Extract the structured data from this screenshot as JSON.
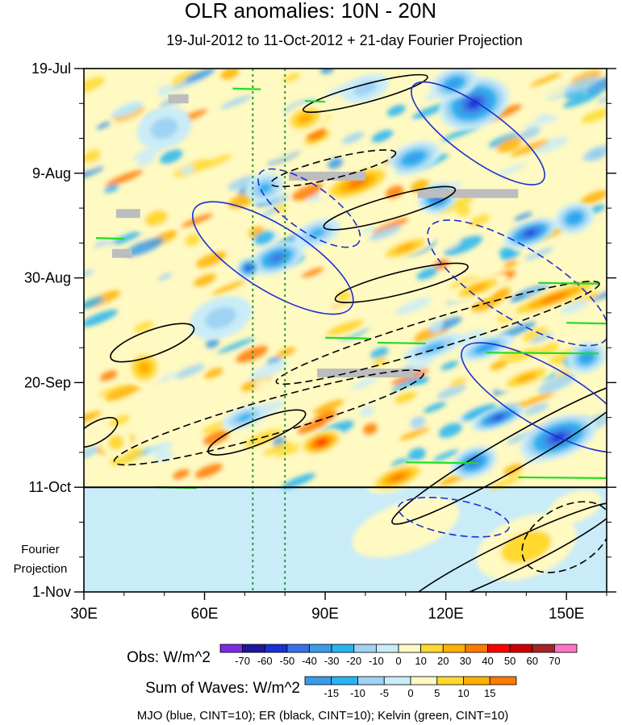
{
  "chart_data": {
    "type": "heatmap",
    "title": "OLR anomalies: 10N - 20N",
    "subtitle": "19-Jul-2012 to 11-Oct-2012 + 21-day Fourier Projection",
    "x_axis": {
      "range": [
        30,
        160
      ],
      "ticks": [
        30,
        60,
        90,
        120,
        150
      ],
      "tick_labels": [
        "30E",
        "60E",
        "90E",
        "120E",
        "150E"
      ],
      "minor_step": 10
    },
    "y_axis": {
      "range_days": [
        0,
        105
      ],
      "direction": "time increases downward",
      "ticks_days": [
        0,
        21,
        42,
        63,
        84,
        105
      ],
      "tick_labels": [
        "19-Jul",
        "9-Aug",
        "30-Aug",
        "20-Sep",
        "11-Oct",
        "1-Nov"
      ],
      "minor_step_days": 7
    },
    "observation_end": {
      "day": 84,
      "label": "11-Oct"
    },
    "projection_label": [
      "Fourier",
      "Projection"
    ],
    "reference_longitudes": [
      72,
      80
    ],
    "colorbars": [
      {
        "label": "Obs: W/m^2",
        "levels": [
          -70,
          -60,
          -50,
          -40,
          -30,
          -20,
          -10,
          0,
          10,
          20,
          30,
          40,
          50,
          60,
          70
        ],
        "colors": [
          "#7d2be0",
          "#1c18a0",
          "#1a2fd6",
          "#3a6fe6",
          "#3a9be8",
          "#27b4f0",
          "#9fd3f3",
          "#c9ecf8",
          "#fff9c2",
          "#ffd92e",
          "#ffb000",
          "#ff7a00",
          "#ff0000",
          "#cc0000",
          "#a52424",
          "#ff74c3"
        ]
      },
      {
        "label": "Sum of Waves: W/m^2",
        "levels": [
          -15,
          -10,
          -5,
          0,
          5,
          10,
          15
        ],
        "colors": [
          "#3a9be8",
          "#27b4f0",
          "#9fd3f3",
          "#c9ecf8",
          "#fff9c2",
          "#ffd92e",
          "#ffb000",
          "#ff7a00"
        ]
      }
    ],
    "contour_legend": "MJO (blue, CINT=10); ER (black, CINT=10); Kelvin (green, CINT=10)",
    "series_colors": {
      "MJO": "#1c2fd0",
      "ER": "#000000",
      "Kelvin": "#22dd22"
    },
    "anomaly_features": [
      {
        "lon": 127,
        "day": 7,
        "rlon": 9,
        "rday": 5,
        "value": -55
      },
      {
        "lon": 122,
        "day": 3,
        "rlon": 6,
        "rday": 3,
        "value": -40
      },
      {
        "lon": 112,
        "day": 18,
        "rlon": 7,
        "rday": 3,
        "value": -35
      },
      {
        "lon": 118,
        "day": 26,
        "rlon": 5,
        "rday": 3,
        "value": -45
      },
      {
        "lon": 141,
        "day": 33,
        "rlon": 7,
        "rday": 2.5,
        "value": -55
      },
      {
        "lon": 152,
        "day": 30,
        "rlon": 5,
        "rday": 3,
        "value": -35
      },
      {
        "lon": 98,
        "day": 23,
        "rlon": 10,
        "rday": 3,
        "value": 40
      },
      {
        "lon": 110,
        "day": 36,
        "rlon": 8,
        "rday": 2,
        "value": 30
      },
      {
        "lon": 147,
        "day": 46,
        "rlon": 14,
        "rday": 2,
        "value": 35
      },
      {
        "lon": 128,
        "day": 44,
        "rlon": 8,
        "rday": 2,
        "value": 25
      },
      {
        "lon": 78,
        "day": 38,
        "rlon": 7,
        "rday": 3,
        "value": -45
      },
      {
        "lon": 71,
        "day": 40,
        "rlon": 3,
        "rday": 2,
        "value": -55
      },
      {
        "lon": 88,
        "day": 33,
        "rlon": 6,
        "rday": 2.5,
        "value": -25
      },
      {
        "lon": 130,
        "day": 56,
        "rlon": 7,
        "rday": 2,
        "value": -35
      },
      {
        "lon": 117,
        "day": 56,
        "rlon": 8,
        "rday": 2,
        "value": -25
      },
      {
        "lon": 133,
        "day": 70,
        "rlon": 7,
        "rday": 2,
        "value": -55
      },
      {
        "lon": 148,
        "day": 74,
        "rlon": 10,
        "rday": 4,
        "value": -60
      },
      {
        "lon": 127,
        "day": 79,
        "rlon": 6,
        "rday": 3,
        "value": -50
      },
      {
        "lon": 89,
        "day": 75,
        "rlon": 6,
        "rday": 2.5,
        "value": 45
      },
      {
        "lon": 108,
        "day": 82,
        "rlon": 8,
        "rday": 2.5,
        "value": 40
      },
      {
        "lon": 70,
        "day": 70,
        "rlon": 6,
        "rday": 2,
        "value": -30
      },
      {
        "lon": 48,
        "day": 30,
        "rlon": 6,
        "rday": 3,
        "value": 20
      },
      {
        "lon": 45,
        "day": 60,
        "rlon": 5,
        "rday": 4,
        "value": 25
      },
      {
        "lon": 38,
        "day": 75,
        "rlon": 4,
        "rday": 3,
        "value": 20
      },
      {
        "lon": 64,
        "day": 50,
        "rlon": 8,
        "rday": 4,
        "value": -20
      },
      {
        "lon": 95,
        "day": 52,
        "rlon": 10,
        "rday": 2,
        "value": 15
      },
      {
        "lon": 110,
        "day": 66,
        "rlon": 6,
        "rday": 2,
        "value": 20
      },
      {
        "lon": 50,
        "day": 12,
        "rlon": 7,
        "rday": 4,
        "value": -20
      },
      {
        "lon": 85,
        "day": 10,
        "rlon": 6,
        "rday": 3,
        "value": 25
      },
      {
        "lon": 100,
        "day": 4,
        "rlon": 6,
        "rday": 2.5,
        "value": -20
      },
      {
        "lon": 75,
        "day": 24,
        "rlon": 5,
        "rday": 3,
        "value": -25
      },
      {
        "lon": 140,
        "day": 62,
        "rlon": 8,
        "rday": 2,
        "value": 30
      },
      {
        "lon": 155,
        "day": 58,
        "rlon": 5,
        "rday": 3,
        "value": -40
      },
      {
        "lon": 140,
        "day": 96,
        "rlon": 13,
        "rday": 6,
        "value": 15
      },
      {
        "lon": 110,
        "day": 92,
        "rlon": 14,
        "rday": 5,
        "value": 10
      },
      {
        "lon": 152,
        "day": 88,
        "rlon": 7,
        "rday": 3,
        "value": 12
      }
    ],
    "missing_data_rows": [
      {
        "lon_start": 51,
        "lon_end": 56,
        "day": 6
      },
      {
        "lon_start": 81,
        "lon_end": 100,
        "day": 21.5
      },
      {
        "lon_start": 113,
        "lon_end": 138,
        "day": 25
      },
      {
        "lon_start": 88,
        "lon_end": 112,
        "day": 61
      },
      {
        "lon_start": 38,
        "lon_end": 44,
        "day": 29
      },
      {
        "lon_start": 37,
        "lon_end": 42,
        "day": 37
      }
    ],
    "mjo_contours": [
      {
        "lon": 128,
        "day": 13,
        "rlon": 20,
        "rday": 5,
        "angle": 36,
        "style": "solid"
      },
      {
        "lon": 77,
        "day": 38,
        "rlon": 23,
        "rday": 6.5,
        "angle": 32,
        "style": "solid"
      },
      {
        "lon": 145,
        "day": 66,
        "rlon": 24,
        "rday": 6,
        "angle": 30,
        "style": "solid"
      },
      {
        "lon": 86,
        "day": 28,
        "rlon": 15,
        "rday": 4.5,
        "angle": 35,
        "style": "dashed"
      },
      {
        "lon": 138,
        "day": 43,
        "rlon": 26,
        "rday": 7,
        "angle": 32,
        "style": "dashed"
      },
      {
        "lon": 122,
        "day": 90,
        "rlon": 14,
        "rday": 3.5,
        "angle": 10,
        "style": "dashed"
      }
    ],
    "er_contours": [
      {
        "lon": 100,
        "day": 5,
        "rlon": 16,
        "rday": 1.8,
        "angle": -15,
        "style": "solid"
      },
      {
        "lon": 106,
        "day": 28,
        "rlon": 17,
        "rday": 2.2,
        "angle": -16,
        "style": "solid"
      },
      {
        "lon": 109,
        "day": 43,
        "rlon": 17,
        "rday": 2.2,
        "angle": -14,
        "style": "solid"
      },
      {
        "lon": 47,
        "day": 55,
        "rlon": 11,
        "rday": 2.5,
        "angle": -20,
        "style": "solid"
      },
      {
        "lon": 73,
        "day": 73,
        "rlon": 13,
        "rday": 2.4,
        "angle": -22,
        "style": "solid"
      },
      {
        "lon": 136,
        "day": 98,
        "rlon": 30,
        "rday": 3,
        "angle": -26,
        "style": "solid"
      },
      {
        "lon": 137,
        "day": 77,
        "rlon": 35,
        "rday": 3.2,
        "angle": -30,
        "style": "solid"
      },
      {
        "lon": 33,
        "day": 73,
        "rlon": 6,
        "rday": 2,
        "angle": -30,
        "style": "solid"
      },
      {
        "lon": 92,
        "day": 20,
        "rlon": 16,
        "rday": 2,
        "angle": -14,
        "style": "dashed"
      },
      {
        "lon": 118,
        "day": 53,
        "rlon": 42,
        "rday": 3,
        "angle": -17,
        "style": "dashed"
      },
      {
        "lon": 76,
        "day": 70,
        "rlon": 40,
        "rday": 3.5,
        "angle": -16,
        "style": "dashed"
      },
      {
        "lon": 150,
        "day": 94,
        "rlon": 12,
        "rday": 6,
        "angle": -30,
        "style": "dashed"
      }
    ],
    "kelvin_segments": [
      {
        "lon_start": 67,
        "lon_end": 74,
        "day": 4
      },
      {
        "lon_start": 85,
        "lon_end": 90,
        "day": 6.5
      },
      {
        "lon_start": 33,
        "lon_end": 40,
        "day": 34
      },
      {
        "lon_start": 90,
        "lon_end": 101,
        "day": 54
      },
      {
        "lon_start": 103,
        "lon_end": 115,
        "day": 55
      },
      {
        "lon_start": 130,
        "lon_end": 158,
        "day": 57
      },
      {
        "lon_start": 143,
        "lon_end": 158,
        "day": 43
      },
      {
        "lon_start": 150,
        "lon_end": 160,
        "day": 51
      },
      {
        "lon_start": 110,
        "lon_end": 128,
        "day": 79
      },
      {
        "lon_start": 138,
        "lon_end": 160,
        "day": 82
      },
      {
        "lon_start": 48,
        "lon_end": 58,
        "day": 84
      }
    ]
  }
}
